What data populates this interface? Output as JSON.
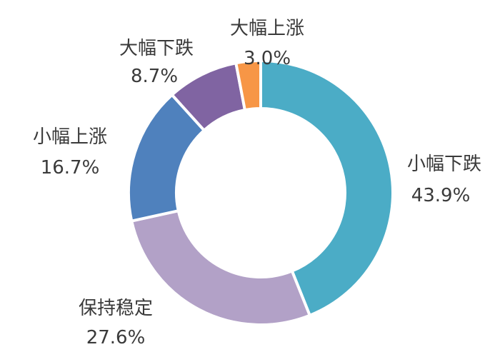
{
  "chart_data": {
    "type": "pie",
    "variant": "donut",
    "title": "",
    "slices": [
      {
        "label": "小幅下跌",
        "value": 43.9,
        "value_label": "43.9%",
        "color": "#4bacc6"
      },
      {
        "label": "保持稳定",
        "value": 27.6,
        "value_label": "27.6%",
        "color": "#b2a1c7"
      },
      {
        "label": "小幅上涨",
        "value": 16.7,
        "value_label": "16.7%",
        "color": "#4f81bd"
      },
      {
        "label": "大幅下跌",
        "value": 8.7,
        "value_label": "8.7%",
        "color": "#8064a2"
      },
      {
        "label": "大幅上涨",
        "value": 3.0,
        "value_label": "3.0%",
        "color": "#f79646"
      }
    ],
    "start_angle": "12 o'clock",
    "direction": "clockwise",
    "legend": "none"
  }
}
